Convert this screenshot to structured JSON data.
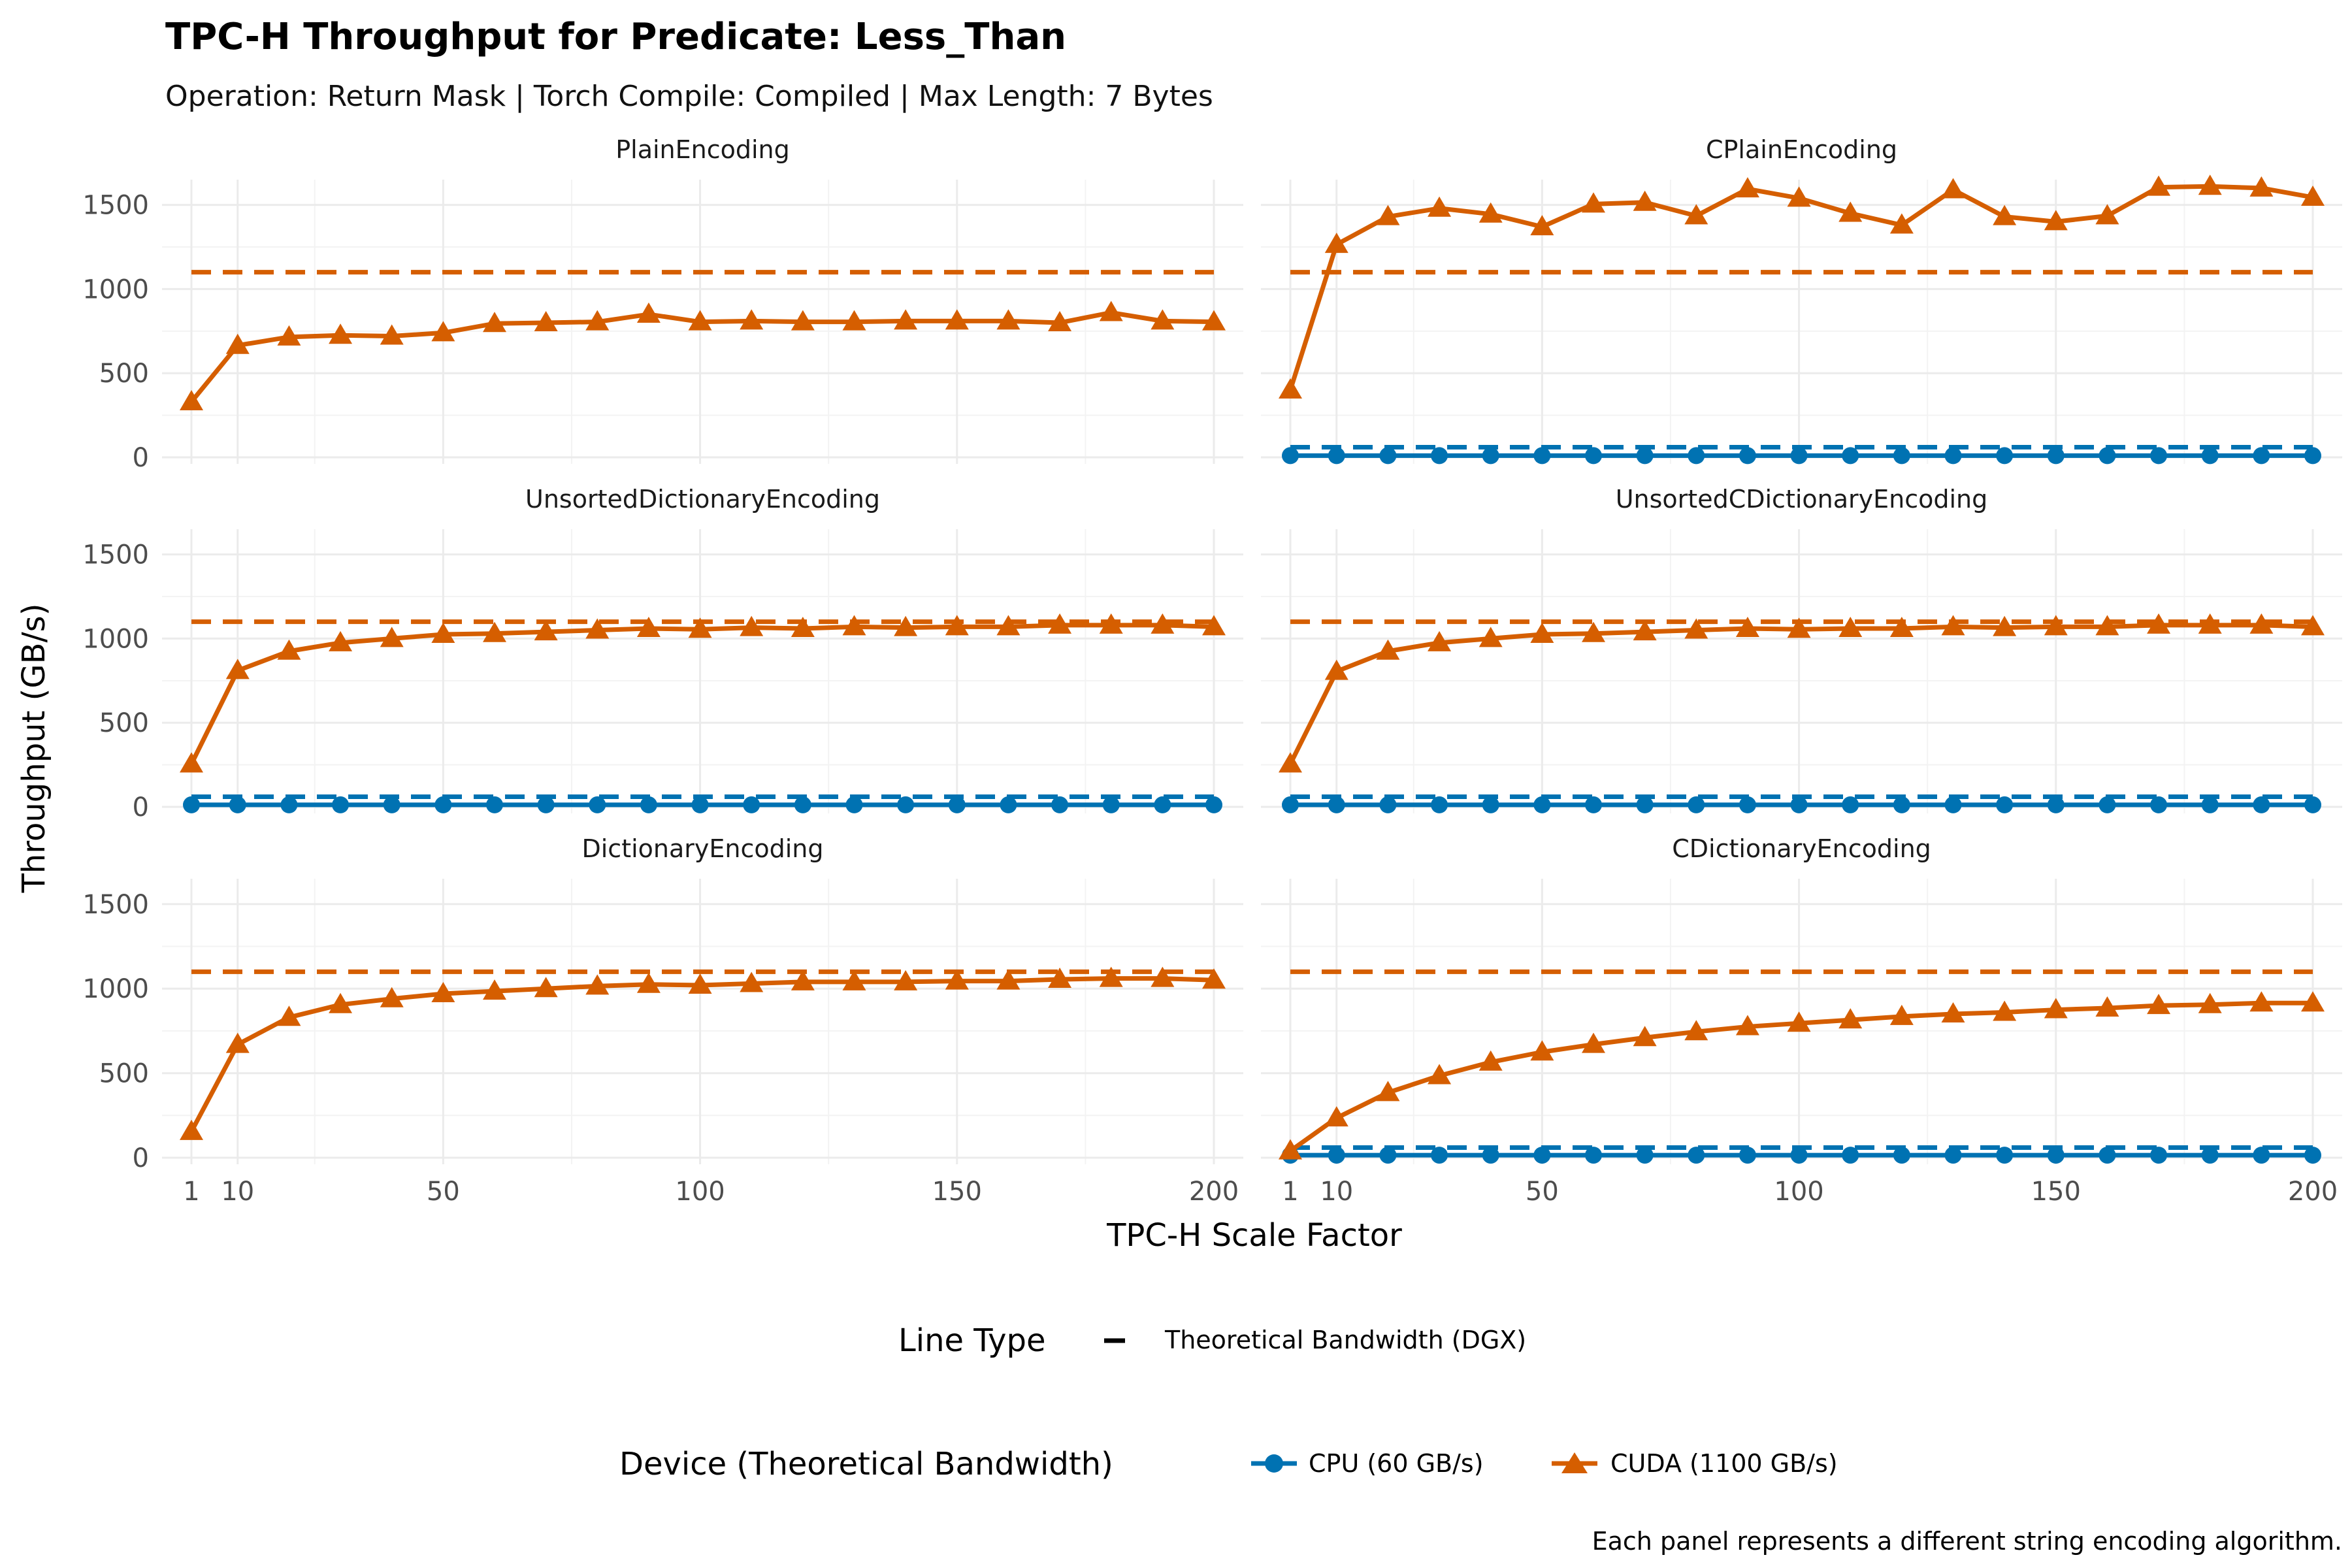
{
  "title": "TPC-H Throughput for Predicate: Less_Than",
  "subtitle": "Operation: Return Mask | Torch Compile: Compiled | Max Length: 7 Bytes",
  "caption": "Each panel represents a different string encoding algorithm.",
  "colors": {
    "cpu": "#0072B2",
    "cuda": "#D55E00"
  },
  "legend": {
    "linetype_title": "Line Type",
    "linetype_label": "Theoretical Bandwidth (DGX)",
    "device_title": "Device (Theoretical Bandwidth)",
    "device_labels": [
      "CPU (60 GB/s)",
      "CUDA (1100 GB/s)"
    ]
  },
  "chart_data": {
    "type": "line",
    "xlabel": "TPC-H Scale Factor",
    "ylabel": "Throughput (GB/s)",
    "x_ticks": [
      1,
      10,
      50,
      100,
      150,
      200
    ],
    "y_ticks": [
      0,
      500,
      1000,
      1500
    ],
    "xlim": [
      1,
      200
    ],
    "ylim": [
      0,
      1650
    ],
    "grid": true,
    "legend_position": "bottom",
    "x": [
      1,
      10,
      20,
      30,
      40,
      50,
      60,
      70,
      80,
      90,
      100,
      110,
      120,
      130,
      140,
      150,
      160,
      170,
      180,
      190,
      200
    ],
    "theoretical_bandwidth": {
      "CPU": 60,
      "CUDA": 1100
    },
    "panels": [
      {
        "name": "PlainEncoding",
        "series": [
          {
            "name": "CUDA (1100 GB/s)",
            "values": [
              330,
              665,
              715,
              725,
              720,
              740,
              795,
              800,
              805,
              850,
              805,
              810,
              805,
              805,
              810,
              810,
              810,
              800,
              860,
              810,
              805
            ]
          }
        ]
      },
      {
        "name": "CPlainEncoding",
        "series": [
          {
            "name": "CPU (60 GB/s)",
            "values": [
              10,
              10,
              10,
              10,
              10,
              10,
              10,
              10,
              10,
              10,
              10,
              10,
              10,
              10,
              10,
              10,
              10,
              10,
              10,
              10,
              10
            ]
          },
          {
            "name": "CUDA (1100 GB/s)",
            "values": [
              400,
              1265,
              1430,
              1480,
              1445,
              1370,
              1505,
              1515,
              1435,
              1595,
              1540,
              1450,
              1380,
              1590,
              1430,
              1400,
              1435,
              1605,
              1610,
              1600,
              1545
            ]
          }
        ]
      },
      {
        "name": "UnsortedDictionaryEncoding",
        "series": [
          {
            "name": "CPU (60 GB/s)",
            "values": [
              12,
              12,
              12,
              12,
              12,
              12,
              12,
              12,
              12,
              12,
              12,
              12,
              12,
              12,
              12,
              12,
              12,
              12,
              12,
              12,
              12
            ]
          },
          {
            "name": "CUDA (1100 GB/s)",
            "values": [
              255,
              810,
              925,
              975,
              1000,
              1025,
              1030,
              1040,
              1050,
              1060,
              1055,
              1065,
              1060,
              1070,
              1065,
              1070,
              1070,
              1080,
              1080,
              1080,
              1070
            ]
          }
        ]
      },
      {
        "name": "UnsortedCDictionaryEncoding",
        "series": [
          {
            "name": "CPU (60 GB/s)",
            "values": [
              12,
              12,
              12,
              12,
              12,
              12,
              12,
              12,
              12,
              12,
              12,
              12,
              12,
              12,
              12,
              12,
              12,
              12,
              12,
              12,
              12
            ]
          },
          {
            "name": "CUDA (1100 GB/s)",
            "values": [
              255,
              805,
              925,
              975,
              1000,
              1025,
              1030,
              1040,
              1050,
              1060,
              1055,
              1060,
              1060,
              1070,
              1065,
              1070,
              1070,
              1080,
              1080,
              1080,
              1070
            ]
          }
        ]
      },
      {
        "name": "DictionaryEncoding",
        "series": [
          {
            "name": "CUDA (1100 GB/s)",
            "values": [
              155,
              670,
              830,
              905,
              940,
              970,
              985,
              1000,
              1015,
              1025,
              1020,
              1030,
              1040,
              1040,
              1040,
              1045,
              1045,
              1055,
              1060,
              1060,
              1050
            ]
          }
        ]
      },
      {
        "name": "CDictionaryEncoding",
        "series": [
          {
            "name": "CPU (60 GB/s)",
            "values": [
              15,
              15,
              15,
              15,
              15,
              15,
              15,
              15,
              15,
              15,
              15,
              15,
              15,
              15,
              15,
              15,
              15,
              15,
              15,
              15,
              15
            ]
          },
          {
            "name": "CUDA (1100 GB/s)",
            "values": [
              40,
              235,
              385,
              485,
              565,
              625,
              670,
              710,
              745,
              775,
              795,
              815,
              835,
              850,
              860,
              875,
              885,
              900,
              905,
              915,
              915
            ]
          }
        ]
      }
    ]
  }
}
